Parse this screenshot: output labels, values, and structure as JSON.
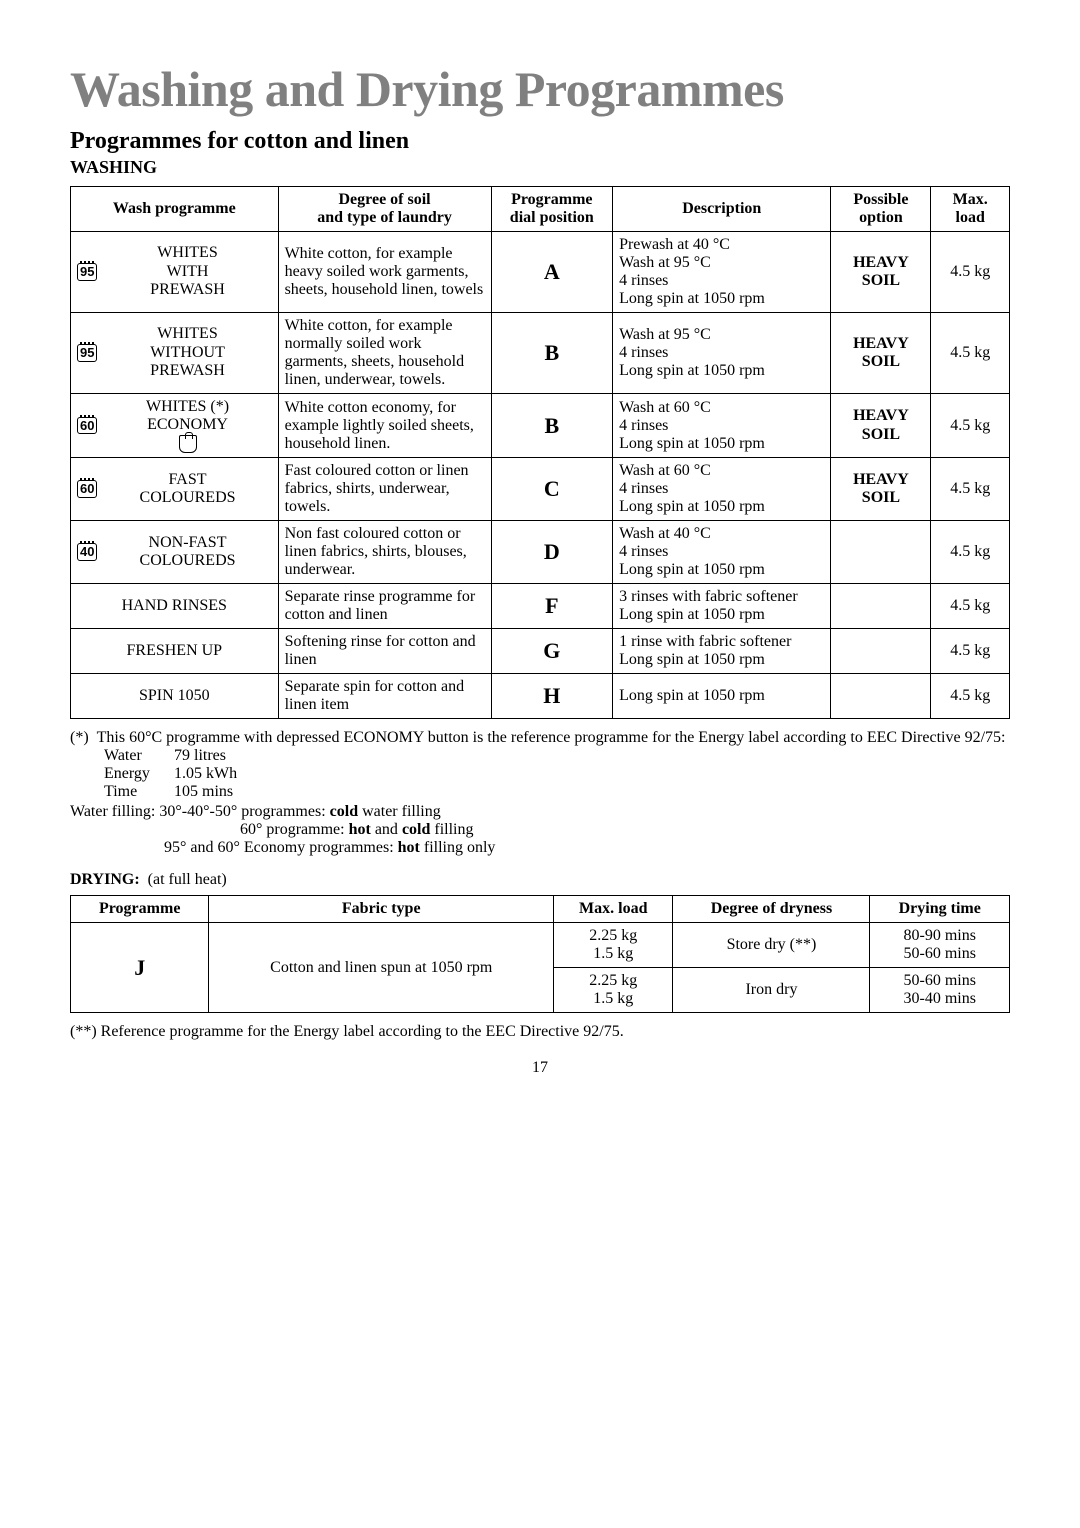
{
  "title": "Washing and Drying Programmes",
  "section": "Programmes for cotton and linen",
  "washing_heading": "WASHING",
  "washing_table": {
    "headers": {
      "wash_programme": "Wash programme",
      "degree": "Degree of soil\nand type of laundry",
      "dial": "Programme\ndial position",
      "description": "Description",
      "option": "Possible\noption",
      "load": "Max.\nload"
    },
    "rows": [
      {
        "temp_icon": "95",
        "label": "WHITES\nWITH\nPREWASH",
        "degree": "White cotton, for example heavy soiled work garments, sheets, household linen, towels",
        "dial": "A",
        "description": "Prewash at 40 °C\nWash at 95 °C\n4 rinses\nLong spin at 1050 rpm",
        "option": "HEAVY\nSOIL",
        "load": "4.5 kg"
      },
      {
        "temp_icon": "95",
        "label": "WHITES\nWITHOUT\nPREWASH",
        "degree": "White cotton, for example normally soiled work garments, sheets, household linen, underwear, towels.",
        "dial": "B",
        "description": "Wash at 95 °C\n4 rinses\nLong spin at 1050 rpm",
        "option": "HEAVY\nSOIL",
        "load": "4.5 kg"
      },
      {
        "temp_icon": "60",
        "label": "WHITES (*)\nECONOMY",
        "hand_icon": true,
        "degree": "White cotton economy, for example lightly soiled sheets, household linen.",
        "dial": "B",
        "description": "Wash at 60 °C\n4 rinses\nLong spin at 1050 rpm",
        "option": "HEAVY\nSOIL",
        "load": "4.5 kg"
      },
      {
        "temp_icon": "60",
        "label": "FAST\nCOLOUREDS",
        "degree": "Fast coloured cotton or linen fabrics, shirts, underwear, towels.",
        "dial": "C",
        "description": "Wash at 60 °C\n4 rinses\nLong spin at 1050 rpm",
        "option": "HEAVY\nSOIL",
        "load": "4.5 kg"
      },
      {
        "temp_icon": "40",
        "label": "NON-FAST\nCOLOUREDS",
        "degree": "Non fast coloured cotton or linen fabrics, shirts, blouses, underwear.",
        "dial": "D",
        "description": "Wash at 40 °C\n4 rinses\nLong spin at 1050 rpm",
        "option": "",
        "load": "4.5 kg"
      },
      {
        "temp_icon": "",
        "label": "HAND RINSES",
        "degree": "Separate rinse programme for cotton and linen",
        "dial": "F",
        "description": "3 rinses with fabric softener\nLong spin at 1050 rpm",
        "option": "",
        "load": "4.5 kg"
      },
      {
        "temp_icon": "",
        "label": "FRESHEN UP",
        "degree": "Softening rinse for cotton and linen",
        "dial": "G",
        "description": "1 rinse with fabric softener\nLong spin at 1050 rpm",
        "option": "",
        "load": "4.5 kg"
      },
      {
        "temp_icon": "",
        "label": "SPIN 1050",
        "degree": "Separate spin for cotton and linen item",
        "dial": "H",
        "description": "Long spin at 1050 rpm",
        "option": "",
        "load": "4.5 kg"
      }
    ]
  },
  "footnote1_prefix": "(*)",
  "footnote1": "This 60°C programme with depressed ECONOMY button is the reference programme for the Energy label according to EEC Directive 92/75:",
  "specs": [
    {
      "label": "Water",
      "value": "79  litres"
    },
    {
      "label": "Energy",
      "value": "1.05  kWh"
    },
    {
      "label": "Time",
      "value": "105 mins"
    }
  ],
  "waterfilling_label": "Water filling:",
  "waterfilling_lines": [
    {
      "prefix": "30°-40°-50° programmes: ",
      "bold": "cold",
      "suffix": " water filling"
    },
    {
      "prefix": "60° programme: ",
      "bold": "hot",
      "mid": " and ",
      "bold2": "cold",
      "suffix": " filling"
    },
    {
      "prefix": "95° and 60° Economy programmes: ",
      "bold": "hot",
      "suffix": " filling only"
    }
  ],
  "drying_heading": "DRYING:",
  "drying_note": "(at full heat)",
  "drying_table": {
    "headers": {
      "programme": "Programme",
      "fabric": "Fabric type",
      "load": "Max. load",
      "dryness": "Degree of dryness",
      "time": "Drying time"
    },
    "prog": "J",
    "fabric": "Cotton and linen spun at 1050 rpm",
    "rows": [
      {
        "load": "2.25 kg\n1.5 kg",
        "dryness": "Store dry (**)",
        "time": "80-90 mins\n50-60 mins"
      },
      {
        "load": "2.25 kg\n1.5 kg",
        "dryness": "Iron dry",
        "time": "50-60 mins\n30-40 mins"
      }
    ]
  },
  "footnote2": "(**) Reference programme for the Energy label according to the EEC Directive 92/75.",
  "page_number": "17"
}
